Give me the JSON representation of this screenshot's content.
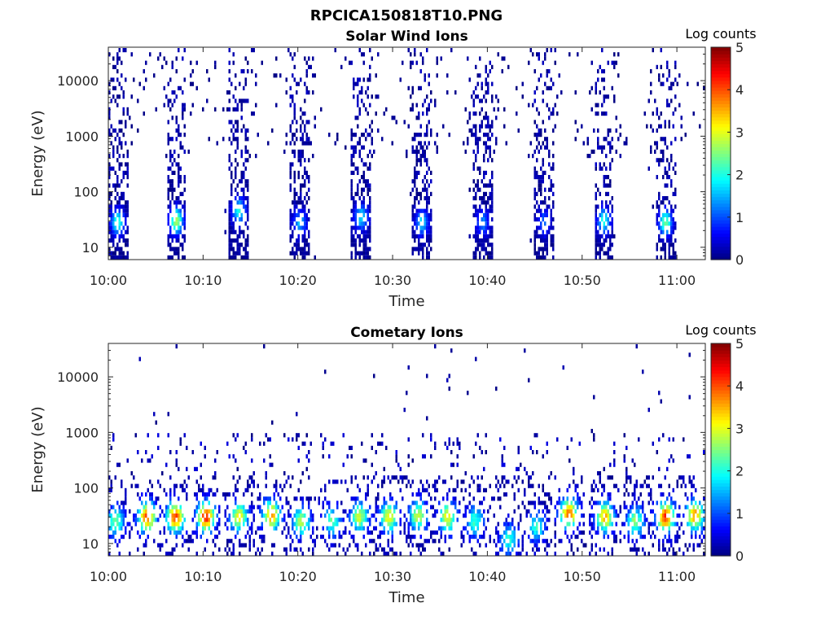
{
  "figure": {
    "title": "RPCICA150818T10.PNG"
  },
  "chart_data": [
    {
      "type": "heatmap",
      "title": "Solar Wind Ions",
      "xlabel": "Time",
      "ylabel": "Energy (eV)",
      "x_tick_labels": [
        "10:00",
        "10:10",
        "10:20",
        "10:30",
        "10:40",
        "10:50",
        "11:00"
      ],
      "x_ticks_minutes": [
        0,
        10,
        20,
        30,
        40,
        50,
        60
      ],
      "xlim_minutes": [
        0,
        63
      ],
      "y_scale": "log",
      "y_tick_values": [
        10,
        100,
        1000,
        10000
      ],
      "y_tick_labels": [
        "10",
        "100",
        "1000",
        "10000"
      ],
      "ylim": [
        6,
        40000
      ],
      "colorbar": {
        "label": "Log counts",
        "range": [
          0,
          5
        ],
        "ticks": [
          "0",
          "1",
          "2",
          "3",
          "4",
          "5"
        ],
        "colormap": "jet"
      },
      "bursts": [
        {
          "t": 1.0,
          "peak_energy": 28,
          "peak_log_counts": 2.1
        },
        {
          "t": 7.2,
          "peak_energy": 30,
          "peak_log_counts": 2.7
        },
        {
          "t": 13.8,
          "peak_energy": 45,
          "peak_log_counts": 1.9
        },
        {
          "t": 20.2,
          "peak_energy": 28,
          "peak_log_counts": 1.4
        },
        {
          "t": 26.7,
          "peak_energy": 35,
          "peak_log_counts": 1.7
        },
        {
          "t": 33.1,
          "peak_energy": 28,
          "peak_log_counts": 1.6
        },
        {
          "t": 39.5,
          "peak_energy": 28,
          "peak_log_counts": 1.2
        },
        {
          "t": 46.0,
          "peak_energy": 28,
          "peak_log_counts": 1.1
        },
        {
          "t": 52.3,
          "peak_energy": 30,
          "peak_log_counts": 1.9
        },
        {
          "t": 58.8,
          "peak_energy": 28,
          "peak_log_counts": 2.3
        }
      ]
    },
    {
      "type": "heatmap",
      "title": "Cometary Ions",
      "xlabel": "Time",
      "ylabel": "Energy (eV)",
      "x_tick_labels": [
        "10:00",
        "10:10",
        "10:20",
        "10:30",
        "10:40",
        "10:50",
        "11:00"
      ],
      "x_ticks_minutes": [
        0,
        10,
        20,
        30,
        40,
        50,
        60
      ],
      "xlim_minutes": [
        0,
        63
      ],
      "y_scale": "log",
      "y_tick_values": [
        10,
        100,
        1000,
        10000
      ],
      "y_tick_labels": [
        "10",
        "100",
        "1000",
        "10000"
      ],
      "ylim": [
        6,
        40000
      ],
      "colorbar": {
        "label": "Log counts",
        "range": [
          0,
          5
        ],
        "ticks": [
          "0",
          "1",
          "2",
          "3",
          "4",
          "5"
        ],
        "colormap": "jet"
      },
      "bursts": [
        {
          "t": 0.8,
          "peak_energy": 25,
          "peak_log_counts": 2.2
        },
        {
          "t": 4.1,
          "peak_energy": 30,
          "peak_log_counts": 3.8
        },
        {
          "t": 7.1,
          "peak_energy": 30,
          "peak_log_counts": 3.9
        },
        {
          "t": 10.3,
          "peak_energy": 30,
          "peak_log_counts": 4.1
        },
        {
          "t": 13.8,
          "peak_energy": 30,
          "peak_log_counts": 2.9
        },
        {
          "t": 17.2,
          "peak_energy": 32,
          "peak_log_counts": 3.4
        },
        {
          "t": 20.4,
          "peak_energy": 25,
          "peak_log_counts": 2.6
        },
        {
          "t": 23.6,
          "peak_energy": 25,
          "peak_log_counts": 2.1
        },
        {
          "t": 26.5,
          "peak_energy": 30,
          "peak_log_counts": 2.7
        },
        {
          "t": 29.6,
          "peak_energy": 30,
          "peak_log_counts": 3.0
        },
        {
          "t": 32.7,
          "peak_energy": 32,
          "peak_log_counts": 2.7
        },
        {
          "t": 35.8,
          "peak_energy": 30,
          "peak_log_counts": 2.9
        },
        {
          "t": 38.7,
          "peak_energy": 25,
          "peak_log_counts": 2.0
        },
        {
          "t": 42.3,
          "peak_energy": 12,
          "peak_log_counts": 1.9
        },
        {
          "t": 45.2,
          "peak_energy": 20,
          "peak_log_counts": 1.9
        },
        {
          "t": 48.6,
          "peak_energy": 35,
          "peak_log_counts": 3.7
        },
        {
          "t": 52.4,
          "peak_energy": 30,
          "peak_log_counts": 3.3
        },
        {
          "t": 55.6,
          "peak_energy": 25,
          "peak_log_counts": 2.4
        },
        {
          "t": 58.8,
          "peak_energy": 30,
          "peak_log_counts": 4.0
        },
        {
          "t": 61.9,
          "peak_energy": 32,
          "peak_log_counts": 3.5
        }
      ]
    }
  ]
}
